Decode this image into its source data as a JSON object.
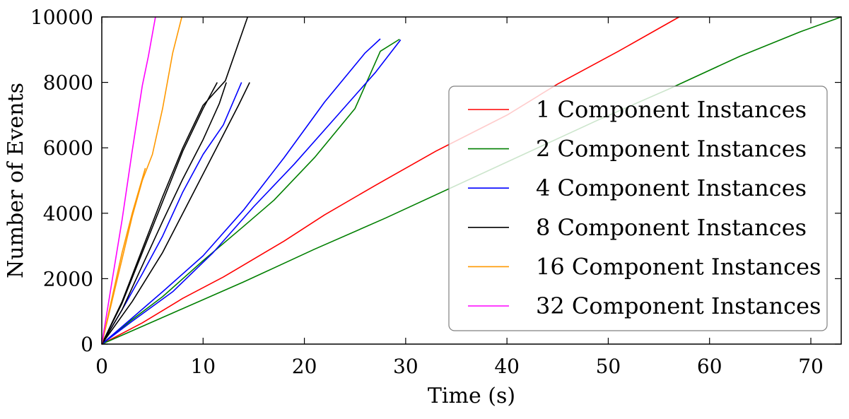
{
  "chart_data": {
    "type": "line",
    "title": "",
    "xlabel": "Time (s)",
    "ylabel": "Number of Events",
    "xlim": [
      0,
      73
    ],
    "ylim": [
      0,
      10000
    ],
    "x_ticks": [
      0,
      10,
      20,
      30,
      40,
      50,
      60,
      70
    ],
    "y_ticks": [
      0,
      2000,
      4000,
      6000,
      8000,
      10000
    ],
    "x_tick_labels": [
      "0",
      "10",
      "20",
      "30",
      "40",
      "50",
      "60",
      "70"
    ],
    "y_tick_labels": [
      "0",
      "2000",
      "4000",
      "6000",
      "8000",
      "10000"
    ],
    "grid": false,
    "legend_position": "center-right",
    "series": [
      {
        "name": "1 Component Instances",
        "color": "#ff0000",
        "runs": [
          [
            [
              0,
              0
            ],
            [
              4,
              650
            ],
            [
              8,
              1400
            ],
            [
              12,
              2050
            ],
            [
              18,
              3150
            ],
            [
              22,
              3950
            ],
            [
              27,
              4850
            ],
            [
              33,
              5900
            ],
            [
              40,
              7000
            ],
            [
              45,
              7950
            ],
            [
              51,
              8950
            ],
            [
              57,
              10000
            ]
          ]
        ]
      },
      {
        "name": "2 Component Instances",
        "color": "#007f00",
        "runs": [
          [
            [
              0,
              0
            ],
            [
              7,
              950
            ],
            [
              14,
              1900
            ],
            [
              21,
              2900
            ],
            [
              28,
              3850
            ],
            [
              35,
              4850
            ],
            [
              42,
              5850
            ],
            [
              49,
              6850
            ],
            [
              56,
              7800
            ],
            [
              63,
              8800
            ],
            [
              69,
              9550
            ],
            [
              73,
              10000
            ]
          ],
          [
            [
              0,
              0
            ],
            [
              3,
              750
            ],
            [
              6,
              1450
            ],
            [
              10,
              2550
            ],
            [
              14,
              3600
            ],
            [
              17,
              4400
            ],
            [
              21,
              5700
            ],
            [
              25,
              7200
            ],
            [
              27.5,
              8950
            ],
            [
              29.4,
              9320
            ]
          ]
        ]
      },
      {
        "name": "4 Component Instances",
        "color": "#0000ff",
        "runs": [
          [
            [
              0,
              0
            ],
            [
              3,
              800
            ],
            [
              6,
              1600
            ],
            [
              10,
              2700
            ],
            [
              14,
              4100
            ],
            [
              18,
              5700
            ],
            [
              22,
              7400
            ],
            [
              26,
              8900
            ],
            [
              27.5,
              9330
            ]
          ],
          [
            [
              0,
              0
            ],
            [
              3,
              700
            ],
            [
              7,
              1600
            ],
            [
              11,
              2800
            ],
            [
              15,
              4200
            ],
            [
              19,
              5500
            ],
            [
              23,
              6900
            ],
            [
              27,
              8300
            ],
            [
              29.5,
              9300
            ]
          ],
          [
            [
              0,
              0
            ],
            [
              2,
              1050
            ],
            [
              4,
              2150
            ],
            [
              6,
              3300
            ],
            [
              8,
              4650
            ],
            [
              10,
              5800
            ],
            [
              12,
              6700
            ],
            [
              13.8,
              8000
            ]
          ]
        ]
      },
      {
        "name": "8 Component Instances",
        "color": "#000000",
        "runs": [
          [
            [
              0,
              0
            ],
            [
              2,
              1300
            ],
            [
              4,
              2900
            ],
            [
              6,
              4500
            ],
            [
              8,
              6000
            ],
            [
              10,
              7300
            ],
            [
              12.2,
              8050
            ],
            [
              14.4,
              10000
            ]
          ],
          [
            [
              0,
              0
            ],
            [
              2,
              1250
            ],
            [
              4,
              2800
            ],
            [
              6,
              4350
            ],
            [
              8,
              5900
            ],
            [
              10,
              7200
            ],
            [
              11.4,
              8000
            ]
          ],
          [
            [
              0,
              0
            ],
            [
              2,
              1050
            ],
            [
              4,
              2400
            ],
            [
              6,
              3750
            ],
            [
              8,
              5050
            ],
            [
              10,
              6250
            ],
            [
              11.6,
              7350
            ],
            [
              12.3,
              8000
            ]
          ],
          [
            [
              0,
              0
            ],
            [
              3,
              1300
            ],
            [
              6,
              2800
            ],
            [
              9,
              4600
            ],
            [
              12,
              6400
            ],
            [
              13.5,
              7300
            ],
            [
              14.6,
              8000
            ]
          ]
        ]
      },
      {
        "name": "16 Component Instances",
        "color": "#ff9900",
        "runs": [
          [
            [
              0,
              0
            ],
            [
              1,
              1300
            ],
            [
              2,
              2600
            ],
            [
              3,
              3900
            ],
            [
              4,
              5000
            ],
            [
              5,
              5800
            ],
            [
              6,
              7200
            ],
            [
              7,
              8900
            ],
            [
              7.9,
              10000
            ]
          ],
          [
            [
              0,
              0
            ],
            [
              1,
              1400
            ],
            [
              2,
              2800
            ],
            [
              3,
              4000
            ],
            [
              4.3,
              5380
            ]
          ]
        ]
      },
      {
        "name": "32 Component Instances",
        "color": "#ff00ff",
        "runs": [
          [
            [
              0,
              0
            ],
            [
              1,
              1900
            ],
            [
              2,
              3800
            ],
            [
              3,
              5900
            ],
            [
              4,
              7900
            ],
            [
              4.6,
              8800
            ],
            [
              5.3,
              10000
            ]
          ]
        ]
      }
    ]
  }
}
